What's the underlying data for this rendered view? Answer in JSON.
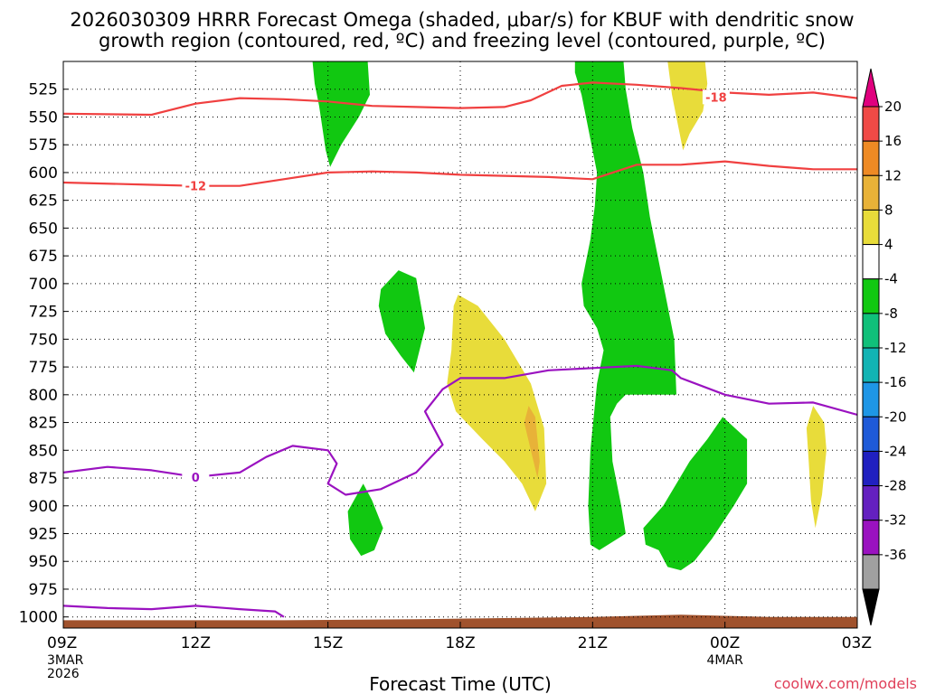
{
  "chart_data": {
    "type": "time-height contour",
    "title_line1": "2026030309 HRRR Forecast Omega (shaded, μbar/s) for KBUF with dendritic snow",
    "title_line2": "growth region (contoured, red, ºC) and freezing level (contoured, purple, ºC)",
    "xlabel": "Forecast Time (UTC)",
    "credit": "coolwx.com/models",
    "x_hours_from_09Z": [
      0,
      3,
      6,
      9,
      12,
      15,
      18
    ],
    "x_tick_labels": [
      "09Z",
      "12Z",
      "15Z",
      "18Z",
      "21Z",
      "00Z",
      "03Z"
    ],
    "x_date_labels": [
      {
        "hour": 0,
        "lines": [
          "3MAR",
          "2026"
        ]
      },
      {
        "hour": 15,
        "lines": [
          "4MAR"
        ]
      }
    ],
    "y_levels_hPa": [
      525,
      550,
      575,
      600,
      625,
      650,
      675,
      700,
      725,
      750,
      775,
      800,
      825,
      850,
      875,
      900,
      925,
      950,
      975,
      1000
    ],
    "y_range_hPa": [
      500,
      1010
    ],
    "colorbar_labels": [
      "20",
      "16",
      "12",
      "8",
      "4",
      "-4",
      "-8",
      "-12",
      "-16",
      "-20",
      "-24",
      "-28",
      "-32",
      "-36"
    ],
    "colorbar_colors": [
      "#e0007e",
      "#f04a46",
      "#ee8a24",
      "#e8b238",
      "#e8dc3a",
      "#ffffff",
      "#11c811",
      "#10c07a",
      "#12b4b4",
      "#1e96e6",
      "#1e5ad8",
      "#2020c0",
      "#6420c0",
      "#9a12c0",
      "#a0a0a0",
      "#000000"
    ],
    "omega_shaded_regions": [
      {
        "name": "green-upper-left",
        "color": "#11c811",
        "points": [
          [
            5.65,
            500
          ],
          [
            6.9,
            500
          ],
          [
            6.95,
            530
          ],
          [
            6.7,
            550
          ],
          [
            6.3,
            575
          ],
          [
            6.05,
            595
          ],
          [
            5.95,
            580
          ],
          [
            5.8,
            540
          ],
          [
            5.7,
            520
          ]
        ]
      },
      {
        "name": "green-main-column",
        "color": "#11c811",
        "points": [
          [
            11.6,
            500
          ],
          [
            12.7,
            500
          ],
          [
            12.75,
            525
          ],
          [
            12.9,
            560
          ],
          [
            13.15,
            600
          ],
          [
            13.3,
            640
          ],
          [
            13.6,
            700
          ],
          [
            13.85,
            750
          ],
          [
            13.9,
            800
          ],
          [
            13.8,
            800
          ],
          [
            13.3,
            800
          ],
          [
            12.75,
            800
          ],
          [
            12.55,
            808
          ],
          [
            12.4,
            820
          ],
          [
            12.45,
            860
          ],
          [
            12.65,
            900
          ],
          [
            12.75,
            925
          ],
          [
            12.55,
            930
          ],
          [
            12.15,
            940
          ],
          [
            11.95,
            935
          ],
          [
            11.9,
            900
          ],
          [
            11.95,
            850
          ],
          [
            12.1,
            790
          ],
          [
            12.25,
            760
          ],
          [
            12.1,
            740
          ],
          [
            11.8,
            720
          ],
          [
            11.75,
            700
          ],
          [
            11.95,
            660
          ],
          [
            12.05,
            630
          ],
          [
            12.1,
            600
          ],
          [
            11.95,
            570
          ],
          [
            11.75,
            530
          ],
          [
            11.6,
            510
          ]
        ]
      },
      {
        "name": "green-mid-blob",
        "color": "#11c811",
        "points": [
          [
            7.2,
            705
          ],
          [
            7.6,
            688
          ],
          [
            8.0,
            695
          ],
          [
            8.2,
            740
          ],
          [
            7.95,
            780
          ],
          [
            7.65,
            765
          ],
          [
            7.3,
            745
          ],
          [
            7.15,
            720
          ]
        ]
      },
      {
        "name": "green-lower-blob",
        "color": "#11c811",
        "points": [
          [
            6.45,
            905
          ],
          [
            6.8,
            880
          ],
          [
            7.0,
            895
          ],
          [
            7.25,
            920
          ],
          [
            7.05,
            940
          ],
          [
            6.75,
            945
          ],
          [
            6.5,
            930
          ]
        ]
      },
      {
        "name": "green-right-blob",
        "color": "#11c811",
        "points": [
          [
            13.15,
            920
          ],
          [
            13.6,
            900
          ],
          [
            13.9,
            880
          ],
          [
            14.2,
            860
          ],
          [
            14.6,
            840
          ],
          [
            14.95,
            820
          ],
          [
            15.5,
            840
          ],
          [
            15.5,
            880
          ],
          [
            15.2,
            900
          ],
          [
            14.7,
            930
          ],
          [
            14.3,
            950
          ],
          [
            14.0,
            958
          ],
          [
            13.7,
            955
          ],
          [
            13.5,
            940
          ],
          [
            13.2,
            935
          ]
        ]
      },
      {
        "name": "yellow-upper-right",
        "color": "#e8dc3a",
        "points": [
          [
            13.7,
            500
          ],
          [
            14.55,
            500
          ],
          [
            14.6,
            520
          ],
          [
            14.5,
            545
          ],
          [
            14.2,
            565
          ],
          [
            14.05,
            580
          ],
          [
            13.95,
            560
          ],
          [
            13.8,
            530
          ]
        ]
      },
      {
        "name": "yellow-lower-center",
        "color": "#e8dc3a",
        "points": [
          [
            8.95,
            710
          ],
          [
            9.4,
            720
          ],
          [
            10.0,
            750
          ],
          [
            10.6,
            790
          ],
          [
            10.9,
            830
          ],
          [
            10.95,
            880
          ],
          [
            10.7,
            905
          ],
          [
            10.4,
            880
          ],
          [
            10.0,
            860
          ],
          [
            9.5,
            840
          ],
          [
            8.9,
            815
          ],
          [
            8.7,
            790
          ],
          [
            8.8,
            760
          ],
          [
            8.85,
            720
          ]
        ]
      },
      {
        "name": "orange-lower-center",
        "color": "#e8b238",
        "points": [
          [
            10.55,
            810
          ],
          [
            10.7,
            820
          ],
          [
            10.8,
            860
          ],
          [
            10.75,
            875
          ],
          [
            10.6,
            850
          ],
          [
            10.45,
            825
          ]
        ]
      },
      {
        "name": "yellow-lower-right",
        "color": "#e8dc3a",
        "points": [
          [
            17.0,
            810
          ],
          [
            17.25,
            825
          ],
          [
            17.3,
            850
          ],
          [
            17.2,
            890
          ],
          [
            17.05,
            920
          ],
          [
            16.95,
            895
          ],
          [
            16.9,
            860
          ],
          [
            16.85,
            830
          ]
        ]
      }
    ],
    "dgz_contours_red": [
      {
        "level": -18,
        "label": "-18",
        "label_at": [
          14.8,
          532
        ],
        "points": [
          [
            0,
            547
          ],
          [
            2,
            548
          ],
          [
            3,
            538
          ],
          [
            4,
            533
          ],
          [
            5,
            534
          ],
          [
            6,
            536
          ],
          [
            7,
            540
          ],
          [
            8,
            541
          ],
          [
            9,
            542
          ],
          [
            10,
            541
          ],
          [
            10.6,
            535
          ],
          [
            11.3,
            522
          ],
          [
            12,
            519
          ],
          [
            13,
            521
          ],
          [
            14,
            524
          ],
          [
            15,
            528
          ],
          [
            16,
            530
          ],
          [
            17,
            528
          ],
          [
            18,
            533
          ]
        ]
      },
      {
        "level": -12,
        "label": "-12",
        "label_at": [
          3,
          612
        ],
        "points": [
          [
            0,
            609
          ],
          [
            2,
            611
          ],
          [
            3,
            612
          ],
          [
            4,
            612
          ],
          [
            5,
            606
          ],
          [
            6,
            600
          ],
          [
            7,
            599
          ],
          [
            8,
            600
          ],
          [
            9,
            602
          ],
          [
            10,
            603
          ],
          [
            11,
            604
          ],
          [
            12,
            606
          ],
          [
            13,
            593
          ],
          [
            14,
            593
          ],
          [
            15,
            590
          ],
          [
            16,
            594
          ],
          [
            17,
            597
          ],
          [
            18,
            597
          ]
        ]
      }
    ],
    "freezing_level_contours_purple": [
      {
        "level": 0,
        "label": "0",
        "label_at": [
          3,
          874
        ],
        "points": [
          [
            0,
            870
          ],
          [
            1,
            865
          ],
          [
            2,
            868
          ],
          [
            3,
            874
          ],
          [
            4,
            870
          ],
          [
            4.6,
            856
          ],
          [
            5.2,
            846
          ],
          [
            6,
            850
          ],
          [
            6.2,
            862
          ],
          [
            6.0,
            880
          ],
          [
            6.4,
            890
          ],
          [
            7.2,
            885
          ],
          [
            8,
            870
          ],
          [
            8.6,
            845
          ],
          [
            8.2,
            815
          ],
          [
            8.6,
            795
          ],
          [
            9,
            785
          ],
          [
            10,
            785
          ],
          [
            11,
            778
          ],
          [
            12,
            776
          ],
          [
            13,
            774
          ],
          [
            13.8,
            778
          ],
          [
            14,
            785
          ],
          [
            15,
            800
          ],
          [
            16,
            808
          ],
          [
            17,
            807
          ],
          [
            18,
            818
          ]
        ]
      },
      {
        "level": 0,
        "points": [
          [
            0,
            990
          ],
          [
            1,
            992
          ],
          [
            2,
            993
          ],
          [
            3,
            990
          ],
          [
            4,
            993
          ],
          [
            4.8,
            995
          ],
          [
            5.0,
            1000
          ]
        ]
      }
    ],
    "terrain_points": [
      [
        0,
        1003
      ],
      [
        5,
        1003
      ],
      [
        8,
        1002
      ],
      [
        12,
        1000
      ],
      [
        14,
        998
      ],
      [
        15,
        999
      ],
      [
        16,
        1000
      ],
      [
        18,
        1000
      ]
    ]
  }
}
